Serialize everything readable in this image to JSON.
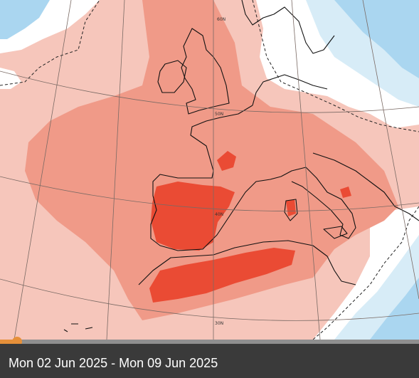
{
  "map": {
    "latitude_labels": [
      "50N",
      "40N",
      "30N"
    ],
    "colors": {
      "anomaly_light": "#f6c6bb",
      "anomaly_medium": "#f09a88",
      "anomaly_strong": "#ea4b34",
      "anomaly_cold_light": "#d7ecf7",
      "anomaly_cold_medium": "#aad6f0",
      "neutral": "#ffffff",
      "coastline": "#111111",
      "graticule": "#7a6a64"
    }
  },
  "timeline": {
    "progress_fraction": 0.04,
    "colors": {
      "track": "#8f8f8f",
      "progress": "#e6903a"
    }
  },
  "caption": {
    "date_range": "Mon 02 Jun 2025 - Mon 09 Jun 2025"
  }
}
